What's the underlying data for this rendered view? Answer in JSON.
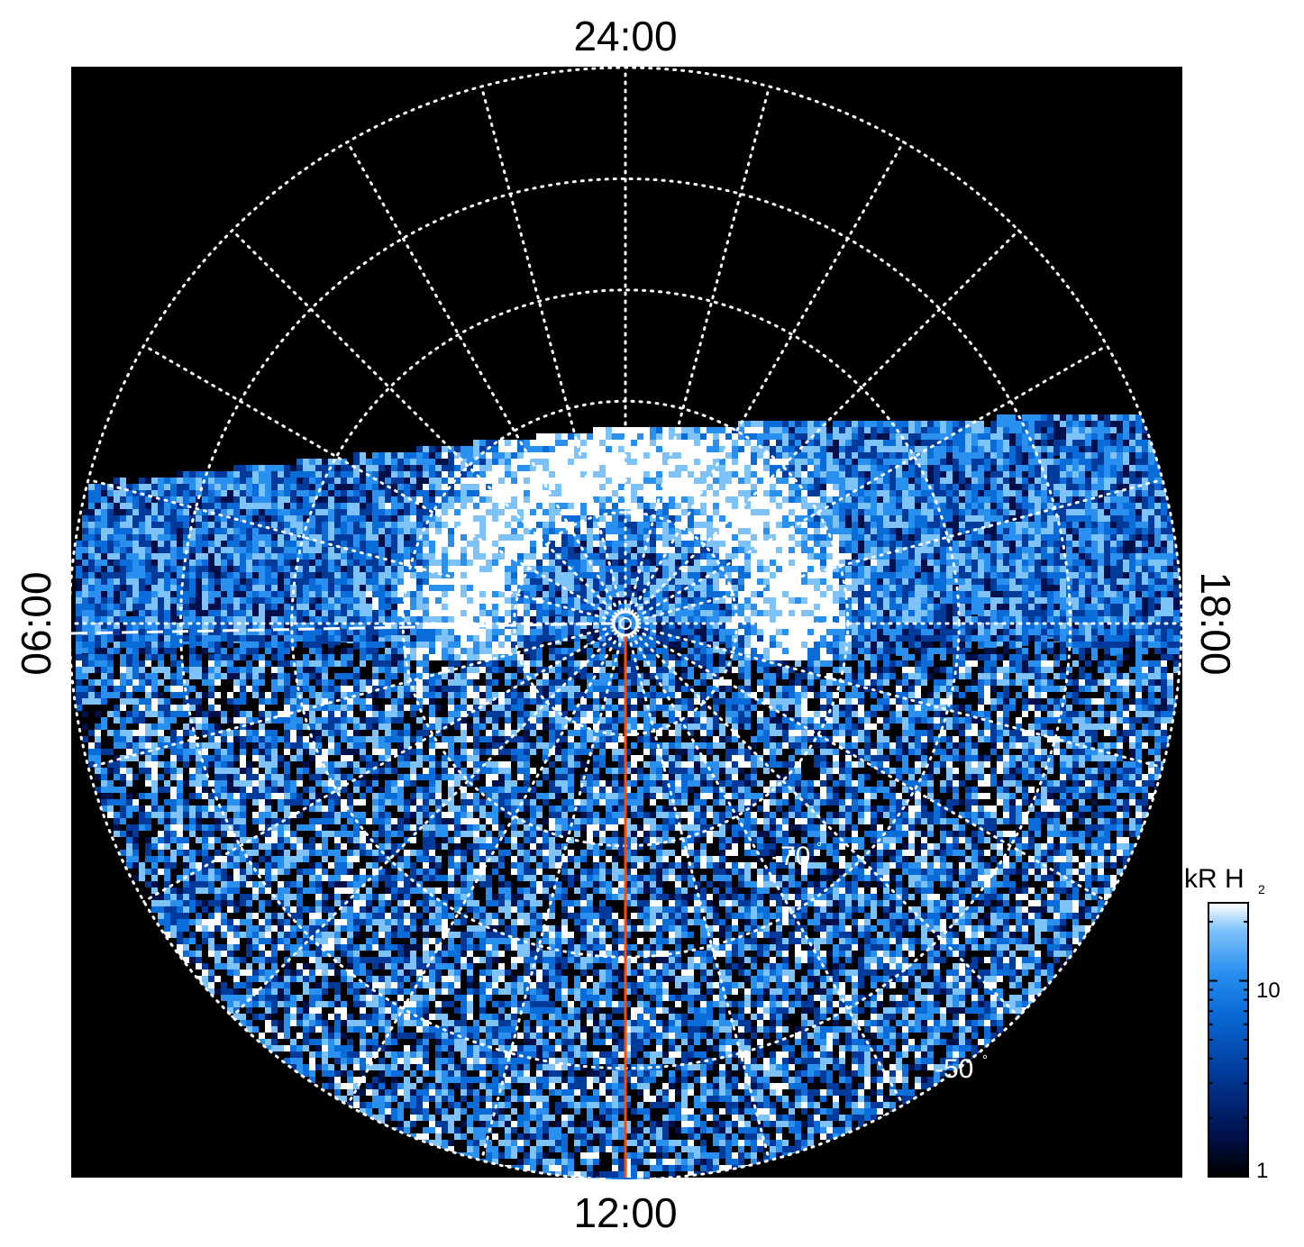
{
  "chart_data": {
    "type": "heatmap",
    "projection": "polar, south pole centered",
    "time_labels": {
      "top": "24:00",
      "right": "18:00",
      "bottom": "12:00",
      "left": "06:00"
    },
    "latitude_labels": [
      {
        "text": "-70",
        "latitude": -70
      },
      {
        "text": "-50",
        "latitude": -50
      }
    ],
    "degree_symbol": "°",
    "latitude_circles": [
      -80,
      -70,
      -60,
      -50,
      -40
    ],
    "local_time_meridians_hours": [
      0,
      1,
      2,
      3,
      4,
      5,
      6,
      7,
      8,
      9,
      10,
      11,
      12,
      13,
      14,
      15,
      16,
      17,
      18,
      19,
      20,
      21,
      22,
      23
    ],
    "emission_region": "observed emission covers roughly 03:00 to 21:00 local time; night side (around 24:00) is black",
    "auroral_oval_latitude_approx": -75,
    "colorbar": {
      "label": "kR H",
      "subscript": "2",
      "scale": "log",
      "range": [
        1,
        25
      ],
      "tick_labels": [
        {
          "text": "10",
          "value": 10
        },
        {
          "text": "1",
          "value": 1
        }
      ],
      "colors": [
        "#000000",
        "#00104a",
        "#003a9a",
        "#0a6cd8",
        "#2a90f0",
        "#7ec2fa",
        "#ffffff"
      ]
    },
    "overlays": {
      "noon_meridian_line": {
        "color": "#ff4a00",
        "from_local_time": "12:00"
      },
      "dawn_meridian_dashed": {
        "color": "#ffffff",
        "style": "dashed",
        "local_time": "06:00"
      },
      "pole_marker": "concentric circles at the pole"
    },
    "grid": true,
    "background": "#000000"
  }
}
